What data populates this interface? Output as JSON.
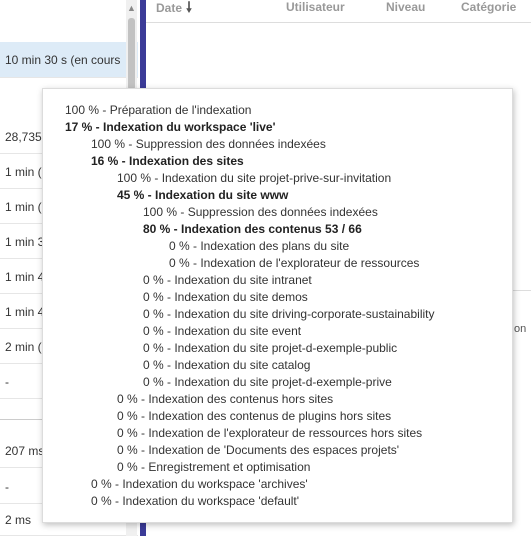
{
  "left_column": {
    "rows": [
      {
        "text": "10 min 30 s (en cours",
        "highlight": true
      },
      {
        "text": "28,735",
        "highlight": false
      },
      {
        "text": "1 min (",
        "highlight": false
      },
      {
        "text": "1 min (",
        "highlight": false
      },
      {
        "text": "1 min 3",
        "highlight": false
      },
      {
        "text": "1 min 4",
        "highlight": false
      },
      {
        "text": "1 min 4",
        "highlight": false
      },
      {
        "text": "2 min (",
        "highlight": false
      },
      {
        "text": "-",
        "highlight": false
      },
      {
        "text": "207 ms",
        "highlight": false
      },
      {
        "text": "-",
        "highlight": false
      },
      {
        "text": "2 ms",
        "highlight": false
      }
    ]
  },
  "table_header": {
    "date": "Date",
    "utilisateur": "Utilisateur",
    "niveau": "Niveau",
    "categorie": "Catégorie"
  },
  "right_fragment": "on",
  "progress_popup": {
    "lines": [
      {
        "text": "100 % - Préparation de l'indexation",
        "level": 0,
        "bold": false
      },
      {
        "text": "17 % - Indexation du workspace 'live'",
        "level": 0,
        "bold": true
      },
      {
        "text": "100 % - Suppression des données indexées",
        "level": 1,
        "bold": false
      },
      {
        "text": "16 % - Indexation des sites",
        "level": 1,
        "bold": true
      },
      {
        "text": "100 % - Indexation du site projet-prive-sur-invitation",
        "level": 2,
        "bold": false
      },
      {
        "text": "45 % - Indexation du site www",
        "level": 2,
        "bold": true
      },
      {
        "text": "100 % - Suppression des données indexées",
        "level": 3,
        "bold": false
      },
      {
        "text": "80 % - Indexation des contenus 53 / 66",
        "level": 3,
        "bold": true
      },
      {
        "text": "0 % - Indexation des plans du site",
        "level": 4,
        "bold": false
      },
      {
        "text": "0 % - Indexation de l'explorateur de ressources",
        "level": 4,
        "bold": false
      },
      {
        "text": "0 % - Indexation du site intranet",
        "level": 3,
        "bold": false
      },
      {
        "text": "0 % - Indexation du site demos",
        "level": 3,
        "bold": false
      },
      {
        "text": "0 % - Indexation du site driving-corporate-sustainability",
        "level": 3,
        "bold": false
      },
      {
        "text": "0 % - Indexation du site event",
        "level": 3,
        "bold": false
      },
      {
        "text": "0 % - Indexation du site projet-d-exemple-public",
        "level": 3,
        "bold": false
      },
      {
        "text": "0 % - Indexation du site catalog",
        "level": 3,
        "bold": false
      },
      {
        "text": "0 % - Indexation du site projet-d-exemple-prive",
        "level": 3,
        "bold": false
      },
      {
        "text": "0 % - Indexation des contenus hors sites",
        "level": 2,
        "bold": false
      },
      {
        "text": "0 % - Indexation des contenus de plugins hors sites",
        "level": 2,
        "bold": false
      },
      {
        "text": "0 % - Indexation de l'explorateur de ressources hors sites",
        "level": 2,
        "bold": false
      },
      {
        "text": "0 % - Indexation de 'Documents des espaces projets'",
        "level": 2,
        "bold": false
      },
      {
        "text": "0 % - Enregistrement et optimisation",
        "level": 2,
        "bold": false
      },
      {
        "text": "0 % - Indexation du workspace 'archives'",
        "level": 1,
        "bold": false
      },
      {
        "text": "0 % - Indexation du workspace 'default'",
        "level": 1,
        "bold": false
      }
    ]
  }
}
